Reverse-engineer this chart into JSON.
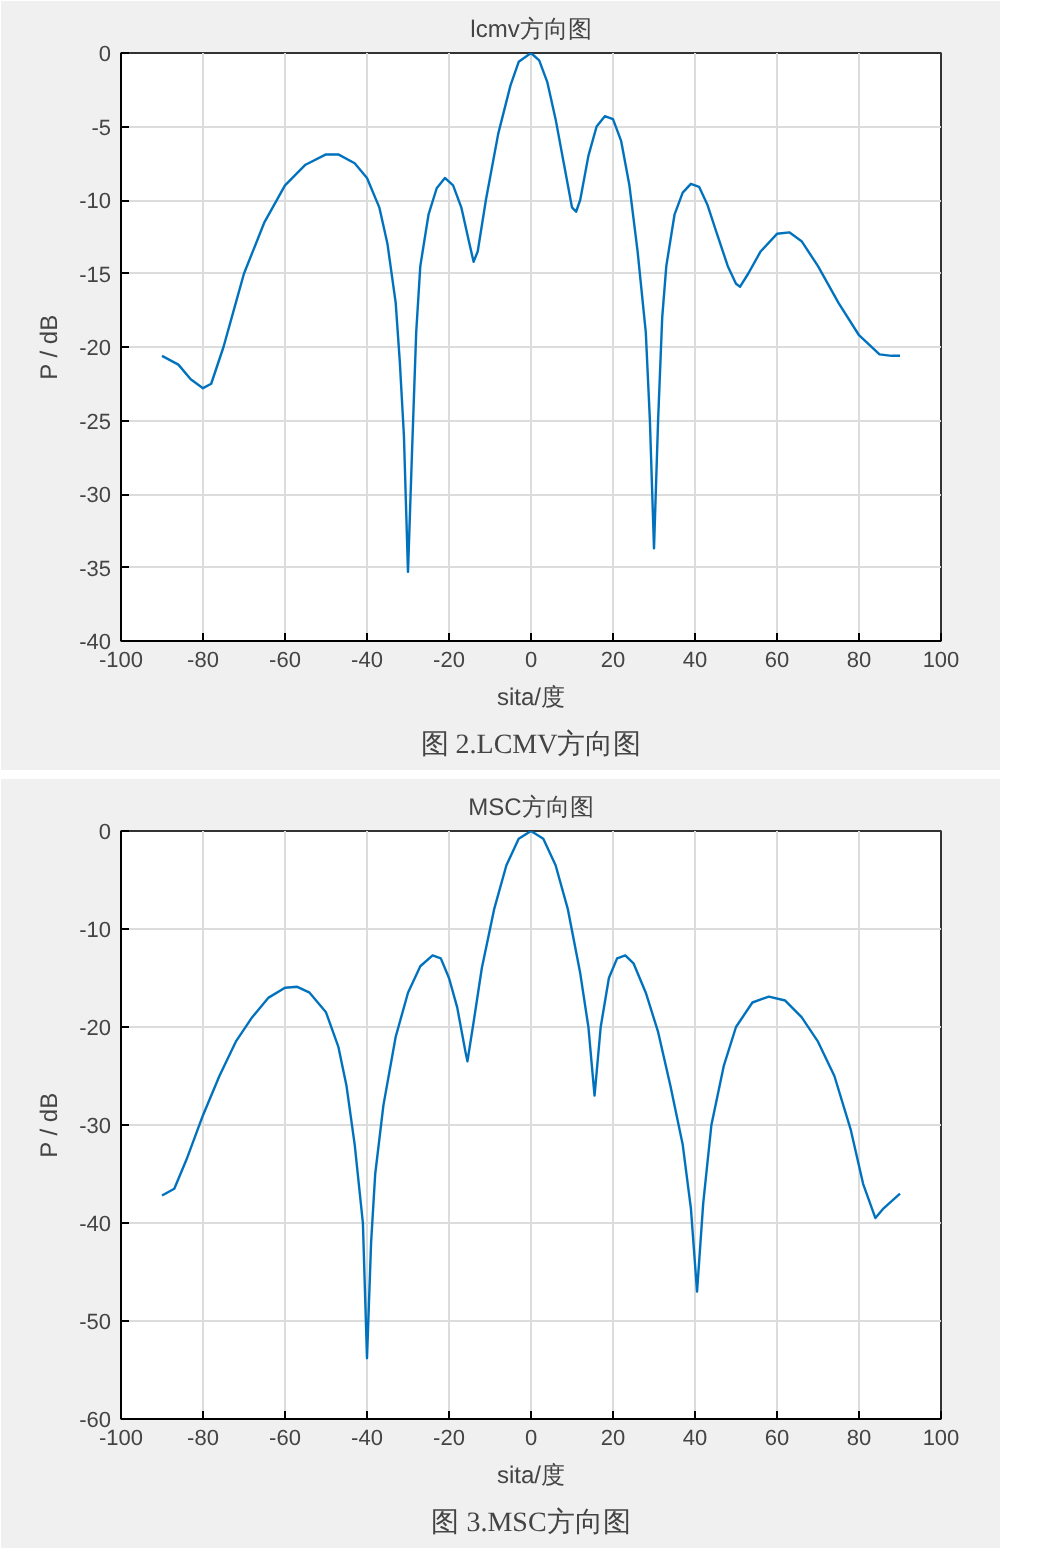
{
  "chart_data": [
    {
      "type": "line",
      "title": "lcmv方向图",
      "xlabel": "sita/度",
      "ylabel": "P / dB",
      "annotations": [
        "图 2.LCMV方向图"
      ],
      "xlim": [
        -100,
        100
      ],
      "ylim": [
        -40,
        0
      ],
      "xticks": [
        -100,
        -80,
        -60,
        -40,
        -20,
        0,
        20,
        40,
        60,
        80,
        100
      ],
      "yticks": [
        -40,
        -35,
        -30,
        -25,
        -20,
        -15,
        -10,
        -5,
        0
      ],
      "grid": true,
      "series": [
        {
          "color": "#0072bd",
          "x": [
            -90,
            -86,
            -83,
            -80,
            -78,
            -75,
            -72,
            -70,
            -65,
            -60,
            -55,
            -50,
            -47,
            -43,
            -40,
            -37,
            -35,
            -33,
            -32,
            -31,
            -30,
            -29,
            -28,
            -27,
            -25,
            -23,
            -21,
            -19,
            -17,
            -15,
            -14,
            -13,
            -11,
            -8,
            -5,
            -3,
            0,
            2,
            4,
            6,
            8,
            10,
            11,
            12,
            14,
            16,
            18,
            20,
            22,
            24,
            26,
            28,
            29,
            30,
            31,
            32,
            33,
            35,
            37,
            39,
            41,
            43,
            45,
            48,
            50,
            51,
            53,
            56,
            60,
            63,
            66,
            70,
            75,
            80,
            85,
            88,
            90
          ],
          "values": [
            -20.6,
            -21.2,
            -22.2,
            -22.8,
            -22.5,
            -20,
            -17,
            -15,
            -11.5,
            -9,
            -7.6,
            -6.9,
            -6.9,
            -7.5,
            -8.5,
            -10.5,
            -13,
            -17,
            -21,
            -26,
            -35.3,
            -27,
            -19,
            -14.5,
            -11,
            -9.2,
            -8.5,
            -9,
            -10.5,
            -13,
            -14.2,
            -13.5,
            -10,
            -5.5,
            -2.2,
            -0.6,
            0,
            -0.5,
            -2,
            -4.5,
            -7.5,
            -10.5,
            -10.8,
            -10,
            -7,
            -5,
            -4.3,
            -4.5,
            -6,
            -9,
            -13.5,
            -19,
            -25,
            -33.7,
            -25,
            -18,
            -14.5,
            -11,
            -9.5,
            -8.9,
            -9.1,
            -10.3,
            -12,
            -14.5,
            -15.7,
            -15.9,
            -15,
            -13.5,
            -12.3,
            -12.2,
            -12.8,
            -14.5,
            -17,
            -19.2,
            -20.5,
            -20.6,
            -20.6
          ]
        }
      ]
    },
    {
      "type": "line",
      "title": "MSC方向图",
      "xlabel": "sita/度",
      "ylabel": "P / dB",
      "annotations": [
        "图 3.MSC方向图"
      ],
      "xlim": [
        -100,
        100
      ],
      "ylim": [
        -60,
        0
      ],
      "xticks": [
        -100,
        -80,
        -60,
        -40,
        -20,
        0,
        20,
        40,
        60,
        80,
        100
      ],
      "yticks": [
        -60,
        -50,
        -40,
        -30,
        -20,
        -10,
        0
      ],
      "grid": true,
      "series": [
        {
          "color": "#0072bd",
          "x": [
            -90,
            -87,
            -84,
            -80,
            -76,
            -72,
            -68,
            -64,
            -60,
            -57,
            -54,
            -50,
            -47,
            -45,
            -43,
            -41,
            -40,
            -39,
            -38,
            -36,
            -33,
            -30,
            -27,
            -24,
            -22,
            -20,
            -18,
            -16,
            -15.5,
            -14,
            -12,
            -9,
            -6,
            -3,
            0,
            3,
            6,
            9,
            12,
            14,
            15.5,
            17,
            19,
            21,
            23,
            25,
            28,
            31,
            34,
            37,
            39,
            40.5,
            42,
            44,
            47,
            50,
            54,
            58,
            62,
            66,
            70,
            74,
            78,
            81,
            84,
            86,
            90
          ],
          "values": [
            -37.2,
            -36.5,
            -33.5,
            -29,
            -25,
            -21.5,
            -19,
            -17,
            -16,
            -15.9,
            -16.5,
            -18.5,
            -22,
            -26,
            -32,
            -40,
            -53.8,
            -42,
            -35,
            -28,
            -21,
            -16.5,
            -13.8,
            -12.7,
            -13,
            -15,
            -18,
            -22.5,
            -23.5,
            -19.5,
            -14,
            -8,
            -3.5,
            -0.8,
            0,
            -0.8,
            -3.5,
            -8,
            -14.5,
            -20,
            -27,
            -20,
            -15,
            -13,
            -12.7,
            -13.5,
            -16.5,
            -20.5,
            -26,
            -32,
            -38.5,
            -47,
            -38,
            -30,
            -24,
            -20,
            -17.5,
            -16.9,
            -17.3,
            -19,
            -21.5,
            -25,
            -30.5,
            -36,
            -39.5,
            -38.5,
            -37
          ]
        }
      ]
    }
  ]
}
